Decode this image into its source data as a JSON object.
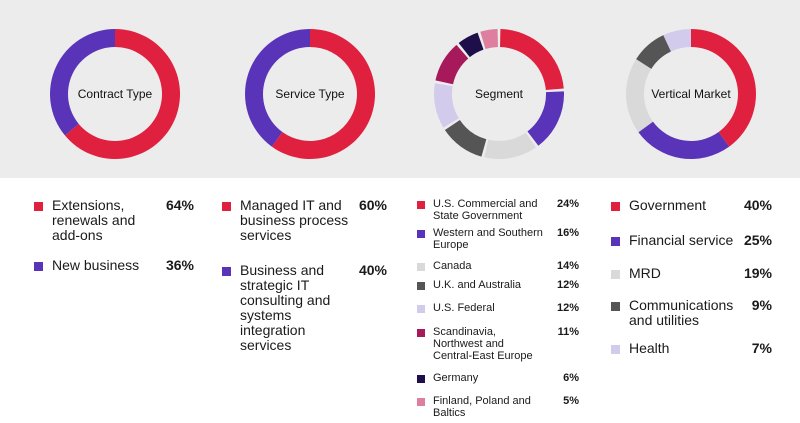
{
  "chart_data": [
    {
      "type": "pie",
      "title": "Contract Type",
      "categories": [
        "Extensions, renewals and add-ons",
        "New business"
      ],
      "values": [
        64,
        36
      ],
      "value_labels": [
        "64%",
        "36%"
      ],
      "colors": [
        "#e0203f",
        "#5a34b8"
      ]
    },
    {
      "type": "pie",
      "title": "Service Type",
      "categories": [
        "Managed IT and business process services",
        "Business and strategic IT consulting and systems integration services"
      ],
      "values": [
        60,
        40
      ],
      "value_labels": [
        "60%",
        "40%"
      ],
      "colors": [
        "#e0203f",
        "#5a34b8"
      ]
    },
    {
      "type": "pie",
      "title": "Segment",
      "categories": [
        "U.S. Commercial and State Government",
        "Western and Southern Europe",
        "Canada",
        "U.K. and Australia",
        "U.S. Federal",
        "Scandinavia, Northwest and Central-East Europe",
        "Germany",
        "Finland, Poland and Baltics"
      ],
      "values": [
        24,
        16,
        14,
        12,
        12,
        11,
        6,
        5
      ],
      "value_labels": [
        "24%",
        "16%",
        "14%",
        "12%",
        "12%",
        "11%",
        "6%",
        "5%"
      ],
      "colors": [
        "#e0203f",
        "#5a34b8",
        "#d9d9d9",
        "#555555",
        "#d3cbeb",
        "#a6195a",
        "#1e0f4a",
        "#de7fa0"
      ]
    },
    {
      "type": "pie",
      "title": "Vertical Market",
      "categories": [
        "Government",
        "Financial service",
        "MRD",
        "Communications and utilities",
        "Health"
      ],
      "values": [
        40,
        25,
        19,
        9,
        7
      ],
      "value_labels": [
        "40%",
        "25%",
        "19%",
        "9%",
        "7%"
      ],
      "colors": [
        "#e0203f",
        "#5a34b8",
        "#d9d9d9",
        "#555555",
        "#d3cbeb"
      ]
    }
  ]
}
